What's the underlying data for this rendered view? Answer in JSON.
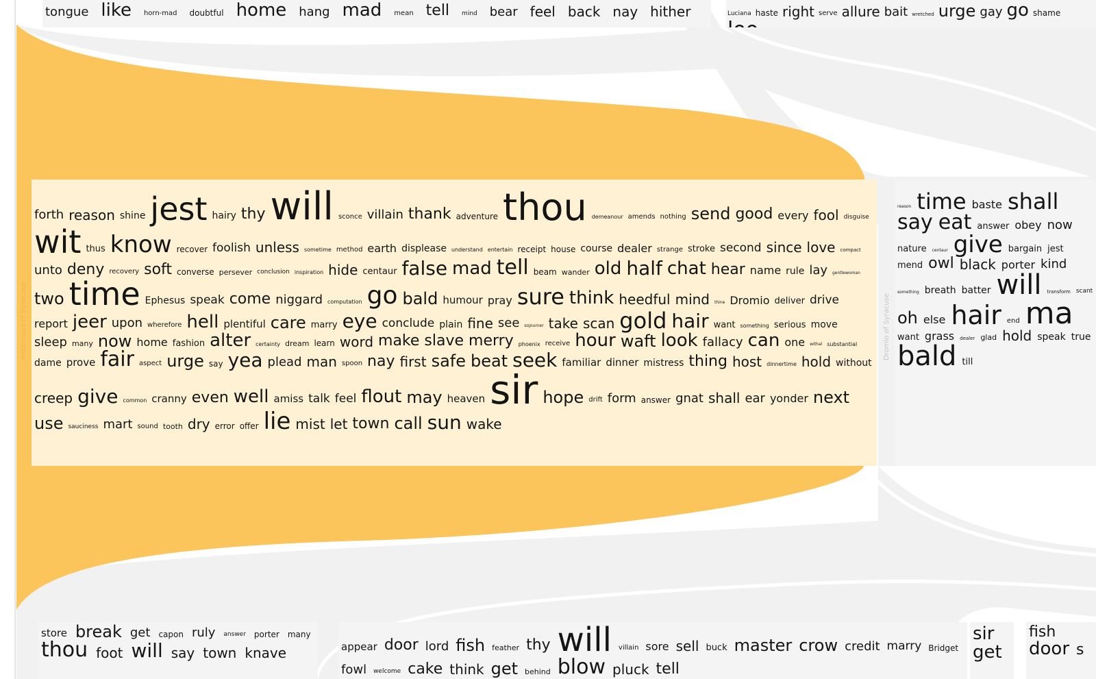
{
  "colors": {
    "accent_flow": "#fbc55b",
    "selected_box": "#fff2d4",
    "neutral_flow": "#f1f1f1",
    "neutral_box": "#f4f4f4",
    "word": "#141414",
    "selected_label": "#f0b84a",
    "neutral_label": "#c6c6c6"
  },
  "selected_box": {
    "label": "Antipholus of Syracuse",
    "words": [
      {
        "t": "forth",
        "s": 18
      },
      {
        "t": "reason",
        "s": 20
      },
      {
        "t": "shine",
        "s": 14
      },
      {
        "t": "jest",
        "s": 46
      },
      {
        "t": "hairy",
        "s": 14
      },
      {
        "t": "thy",
        "s": 22
      },
      {
        "t": "will",
        "s": 56
      },
      {
        "t": "sconce",
        "s": 10
      },
      {
        "t": "villain",
        "s": 18
      },
      {
        "t": "thank",
        "s": 22
      },
      {
        "t": "adventure",
        "s": 12
      },
      {
        "t": "thou",
        "s": 54
      },
      {
        "t": "demeanour",
        "s": 8
      },
      {
        "t": "amends",
        "s": 10
      },
      {
        "t": "nothing",
        "s": 10
      },
      {
        "t": "send",
        "s": 24
      },
      {
        "t": "good",
        "s": 22
      },
      {
        "t": "every",
        "s": 16
      },
      {
        "t": "fool",
        "s": 20
      },
      {
        "t": "disguise",
        "s": 9
      },
      {
        "t": "wit",
        "s": 46
      },
      {
        "t": "thus",
        "s": 13
      },
      {
        "t": "know",
        "s": 34
      },
      {
        "t": "recover",
        "s": 12
      },
      {
        "t": "foolish",
        "s": 17
      },
      {
        "t": "unless",
        "s": 20
      },
      {
        "t": "sometime",
        "s": 8
      },
      {
        "t": "method",
        "s": 10
      },
      {
        "t": "earth",
        "s": 16
      },
      {
        "t": "displease",
        "s": 14
      },
      {
        "t": "understand",
        "s": 8
      },
      {
        "t": "entertain",
        "s": 8
      },
      {
        "t": "receipt",
        "s": 12
      },
      {
        "t": "house",
        "s": 12
      },
      {
        "t": "course",
        "s": 14
      },
      {
        "t": "dealer",
        "s": 16
      },
      {
        "t": "strange",
        "s": 10
      },
      {
        "t": "stroke",
        "s": 13
      },
      {
        "t": "second",
        "s": 17
      },
      {
        "t": "since",
        "s": 20
      },
      {
        "t": "love",
        "s": 20
      },
      {
        "t": "compact",
        "s": 7
      },
      {
        "t": "unto",
        "s": 18
      },
      {
        "t": "deny",
        "s": 22
      },
      {
        "t": "recovery",
        "s": 10
      },
      {
        "t": "soft",
        "s": 22
      },
      {
        "t": "converse",
        "s": 12
      },
      {
        "t": "persever",
        "s": 11
      },
      {
        "t": "conclusion",
        "s": 9
      },
      {
        "t": "inspiration",
        "s": 8
      },
      {
        "t": "hide",
        "s": 20
      },
      {
        "t": "centaur",
        "s": 13
      },
      {
        "t": "false",
        "s": 28
      },
      {
        "t": "mad",
        "s": 26
      },
      {
        "t": "tell",
        "s": 30
      },
      {
        "t": "beam",
        "s": 12
      },
      {
        "t": "wander",
        "s": 11
      },
      {
        "t": "old",
        "s": 26
      },
      {
        "t": "half",
        "s": 28
      },
      {
        "t": "chat",
        "s": 26
      },
      {
        "t": "hear",
        "s": 22
      },
      {
        "t": "name",
        "s": 16
      },
      {
        "t": "rule",
        "s": 14
      },
      {
        "t": "lay",
        "s": 18
      },
      {
        "t": "gentlewoman",
        "s": 6
      },
      {
        "t": "two",
        "s": 24
      },
      {
        "t": "time",
        "s": 46
      },
      {
        "t": "Ephesus",
        "s": 14
      },
      {
        "t": "speak",
        "s": 17
      },
      {
        "t": "come",
        "s": 22
      },
      {
        "t": "niggard",
        "s": 18
      },
      {
        "t": "computation",
        "s": 8
      },
      {
        "t": "go",
        "s": 36
      },
      {
        "t": "bald",
        "s": 24
      },
      {
        "t": "humour",
        "s": 15
      },
      {
        "t": "pray",
        "s": 16
      },
      {
        "t": "sure",
        "s": 32
      },
      {
        "t": "think",
        "s": 26
      },
      {
        "t": "heedful",
        "s": 20
      },
      {
        "t": "mind",
        "s": 20
      },
      {
        "t": "thine",
        "s": 6
      },
      {
        "t": "Dromio",
        "s": 16
      },
      {
        "t": "deliver",
        "s": 13
      },
      {
        "t": "drive",
        "s": 17
      },
      {
        "t": "report",
        "s": 16
      },
      {
        "t": "jeer",
        "s": 26
      },
      {
        "t": "upon",
        "s": 18
      },
      {
        "t": "wherefore",
        "s": 10
      },
      {
        "t": "hell",
        "s": 26
      },
      {
        "t": "plentiful",
        "s": 15
      },
      {
        "t": "care",
        "s": 24
      },
      {
        "t": "marry",
        "s": 13
      },
      {
        "t": "eye",
        "s": 28
      },
      {
        "t": "conclude",
        "s": 17
      },
      {
        "t": "plain",
        "s": 14
      },
      {
        "t": "fine",
        "s": 20
      },
      {
        "t": "see",
        "s": 18
      },
      {
        "t": "sojourner",
        "s": 6
      },
      {
        "t": "take",
        "s": 20
      },
      {
        "t": "scan",
        "s": 20
      },
      {
        "t": "gold",
        "s": 32
      },
      {
        "t": "hair",
        "s": 28
      },
      {
        "t": "want",
        "s": 13
      },
      {
        "t": "something",
        "s": 8
      },
      {
        "t": "serious",
        "s": 13
      },
      {
        "t": "move",
        "s": 14
      },
      {
        "t": "sleep",
        "s": 18
      },
      {
        "t": "many",
        "s": 11
      },
      {
        "t": "now",
        "s": 24
      },
      {
        "t": "home",
        "s": 16
      },
      {
        "t": "fashion",
        "s": 13
      },
      {
        "t": "alter",
        "s": 26
      },
      {
        "t": "certainty",
        "s": 8
      },
      {
        "t": "dream",
        "s": 11
      },
      {
        "t": "learn",
        "s": 12
      },
      {
        "t": "word",
        "s": 20
      },
      {
        "t": "make",
        "s": 22
      },
      {
        "t": "slave",
        "s": 22
      },
      {
        "t": "merry",
        "s": 22
      },
      {
        "t": "phoenix",
        "s": 8
      },
      {
        "t": "receive",
        "s": 10
      },
      {
        "t": "hour",
        "s": 26
      },
      {
        "t": "waft",
        "s": 24
      },
      {
        "t": "look",
        "s": 26
      },
      {
        "t": "fallacy",
        "s": 18
      },
      {
        "t": "can",
        "s": 26
      },
      {
        "t": "one",
        "s": 16
      },
      {
        "t": "withal",
        "s": 6
      },
      {
        "t": "substantial",
        "s": 8
      },
      {
        "t": "dame",
        "s": 14
      },
      {
        "t": "prove",
        "s": 15
      },
      {
        "t": "fair",
        "s": 30
      },
      {
        "t": "aspect",
        "s": 10
      },
      {
        "t": "urge",
        "s": 24
      },
      {
        "t": "say",
        "s": 12
      },
      {
        "t": "yea",
        "s": 28
      },
      {
        "t": "plead",
        "s": 18
      },
      {
        "t": "man",
        "s": 20
      },
      {
        "t": "spoon",
        "s": 10
      },
      {
        "t": "nay",
        "s": 22
      },
      {
        "t": "first",
        "s": 20
      },
      {
        "t": "safe",
        "s": 24
      },
      {
        "t": "beat",
        "s": 24
      },
      {
        "t": "seek",
        "s": 28
      },
      {
        "t": "familiar",
        "s": 15
      },
      {
        "t": "dinner",
        "s": 15
      },
      {
        "t": "mistress",
        "s": 14
      },
      {
        "t": "thing",
        "s": 22
      },
      {
        "t": "host",
        "s": 20
      },
      {
        "t": "dinnertime",
        "s": 8
      },
      {
        "t": "hold",
        "s": 20
      },
      {
        "t": "without",
        "s": 14
      },
      {
        "t": "creep",
        "s": 20
      },
      {
        "t": "give",
        "s": 28
      },
      {
        "t": "common",
        "s": 8
      },
      {
        "t": "cranny",
        "s": 15
      },
      {
        "t": "even",
        "s": 22
      },
      {
        "t": "well",
        "s": 26
      },
      {
        "t": "amiss",
        "s": 15
      },
      {
        "t": "talk",
        "s": 17
      },
      {
        "t": "feel",
        "s": 17
      },
      {
        "t": "flout",
        "s": 26
      },
      {
        "t": "may",
        "s": 24
      },
      {
        "t": "heaven",
        "s": 15
      },
      {
        "t": "sir",
        "s": 58
      },
      {
        "t": "hope",
        "s": 24
      },
      {
        "t": "drift",
        "s": 10
      },
      {
        "t": "form",
        "s": 18
      },
      {
        "t": "answer",
        "s": 12
      },
      {
        "t": "gnat",
        "s": 18
      },
      {
        "t": "shall",
        "s": 20
      },
      {
        "t": "ear",
        "s": 18
      },
      {
        "t": "yonder",
        "s": 16
      },
      {
        "t": "next",
        "s": 24
      },
      {
        "t": "use",
        "s": 24
      },
      {
        "t": "sauciness",
        "s": 9
      },
      {
        "t": "mart",
        "s": 18
      },
      {
        "t": "sound",
        "s": 10
      },
      {
        "t": "tooth",
        "s": 11
      },
      {
        "t": "dry",
        "s": 20
      },
      {
        "t": "error",
        "s": 12
      },
      {
        "t": "offer",
        "s": 12
      },
      {
        "t": "lie",
        "s": 34
      },
      {
        "t": "mist",
        "s": 20
      },
      {
        "t": "let",
        "s": 20
      },
      {
        "t": "town",
        "s": 22
      },
      {
        "t": "call",
        "s": 24
      },
      {
        "t": "sun",
        "s": 28
      },
      {
        "t": "wake",
        "s": 20
      }
    ]
  },
  "right_box": {
    "label": "Dromio of Syracuse",
    "words": [
      {
        "t": "reason",
        "s": 6
      },
      {
        "t": "time",
        "s": 32
      },
      {
        "t": "baste",
        "s": 16
      },
      {
        "t": "shall",
        "s": 32
      },
      {
        "t": "say",
        "s": 30
      },
      {
        "t": "eat",
        "s": 30
      },
      {
        "t": "answer",
        "s": 13
      },
      {
        "t": "obey",
        "s": 16
      },
      {
        "t": "now",
        "s": 18
      },
      {
        "t": "nature",
        "s": 13
      },
      {
        "t": "centaur",
        "s": 6
      },
      {
        "t": "give",
        "s": 34
      },
      {
        "t": "bargain",
        "s": 13
      },
      {
        "t": "jest",
        "s": 13
      },
      {
        "t": "mend",
        "s": 13
      },
      {
        "t": "owl",
        "s": 22
      },
      {
        "t": "black",
        "s": 20
      },
      {
        "t": "porter",
        "s": 16
      },
      {
        "t": "kind",
        "s": 18
      },
      {
        "t": "something",
        "s": 6
      },
      {
        "t": "breath",
        "s": 14
      },
      {
        "t": "batter",
        "s": 14
      },
      {
        "t": "will",
        "s": 40
      },
      {
        "t": "transform",
        "s": 7
      },
      {
        "t": "scant",
        "s": 9
      },
      {
        "t": "oh",
        "s": 24
      },
      {
        "t": "else",
        "s": 16
      },
      {
        "t": "hair",
        "s": 38
      },
      {
        "t": "end",
        "s": 10
      },
      {
        "t": "ma",
        "s": 44
      },
      {
        "t": "want",
        "s": 13
      },
      {
        "t": "grass",
        "s": 16
      },
      {
        "t": "dealer",
        "s": 7
      },
      {
        "t": "glad",
        "s": 11
      },
      {
        "t": "hold",
        "s": 20
      },
      {
        "t": "speak",
        "s": 14
      },
      {
        "t": "true",
        "s": 14
      },
      {
        "t": "bald",
        "s": 40
      },
      {
        "t": "till",
        "s": 13
      }
    ]
  },
  "top_left_box": {
    "words": [
      {
        "t": "tongue",
        "s": 18
      },
      {
        "t": "like",
        "s": 26
      },
      {
        "t": "horn-mad",
        "s": 10
      },
      {
        "t": "doubtful",
        "s": 12
      },
      {
        "t": "home",
        "s": 26
      },
      {
        "t": "hang",
        "s": 18
      },
      {
        "t": "mad",
        "s": 26
      },
      {
        "t": "mean",
        "s": 10
      },
      {
        "t": "tell",
        "s": 22
      },
      {
        "t": "mind",
        "s": 9
      },
      {
        "t": "bear",
        "s": 18
      },
      {
        "t": "feel",
        "s": 20
      },
      {
        "t": "back",
        "s": 20
      },
      {
        "t": "nay",
        "s": 20
      },
      {
        "t": "hither",
        "s": 20
      }
    ]
  },
  "top_right_box": {
    "words": [
      {
        "t": "Luciana",
        "s": 9
      },
      {
        "t": "haste",
        "s": 12
      },
      {
        "t": "right",
        "s": 20
      },
      {
        "t": "serve",
        "s": 10
      },
      {
        "t": "allure",
        "s": 20
      },
      {
        "t": "bait",
        "s": 18
      },
      {
        "t": "wretched",
        "s": 7
      },
      {
        "t": "urge",
        "s": 24
      },
      {
        "t": "gay",
        "s": 18
      },
      {
        "t": "go",
        "s": 26
      },
      {
        "t": "shame",
        "s": 12
      },
      {
        "t": "loo",
        "s": 30
      }
    ]
  },
  "bottom_box_1": {
    "words": [
      {
        "t": "store",
        "s": 15
      },
      {
        "t": "break",
        "s": 24
      },
      {
        "t": "get",
        "s": 18
      },
      {
        "t": "capon",
        "s": 12
      },
      {
        "t": "ruly",
        "s": 18
      },
      {
        "t": "answer",
        "s": 9
      },
      {
        "t": "porter",
        "s": 12
      },
      {
        "t": "many",
        "s": 12
      },
      {
        "t": "thou",
        "s": 30
      },
      {
        "t": "foot",
        "s": 20
      },
      {
        "t": "will",
        "s": 28
      },
      {
        "t": "say",
        "s": 20
      },
      {
        "t": "town",
        "s": 20
      },
      {
        "t": "knave",
        "s": 20
      }
    ]
  },
  "bottom_box_2": {
    "words": [
      {
        "t": "appear",
        "s": 15
      },
      {
        "t": "door",
        "s": 22
      },
      {
        "t": "lord",
        "s": 18
      },
      {
        "t": "fish",
        "s": 24
      },
      {
        "t": "feather",
        "s": 11
      },
      {
        "t": "thy",
        "s": 22
      },
      {
        "t": "will",
        "s": 48
      },
      {
        "t": "villain",
        "s": 10
      },
      {
        "t": "sore",
        "s": 16
      },
      {
        "t": "sell",
        "s": 20
      },
      {
        "t": "buck",
        "s": 13
      },
      {
        "t": "master",
        "s": 24
      },
      {
        "t": "crow",
        "s": 24
      },
      {
        "t": "credit",
        "s": 18
      },
      {
        "t": "marry",
        "s": 17
      },
      {
        "t": "Bridget",
        "s": 12
      },
      {
        "t": "fowl",
        "s": 18
      },
      {
        "t": "welcome",
        "s": 9
      },
      {
        "t": "cake",
        "s": 22
      },
      {
        "t": "think",
        "s": 20
      },
      {
        "t": "get",
        "s": 24
      },
      {
        "t": "behind",
        "s": 11
      },
      {
        "t": "blow",
        "s": 30
      },
      {
        "t": "pluck",
        "s": 20
      },
      {
        "t": "tell",
        "s": 22
      }
    ]
  },
  "bottom_box_3": {
    "words": [
      {
        "t": "sir",
        "s": 26
      },
      {
        "t": "get",
        "s": 26
      }
    ]
  },
  "bottom_box_4": {
    "words": [
      {
        "t": "fish",
        "s": 22
      },
      {
        "t": "door",
        "s": 26
      },
      {
        "t": "s",
        "s": 22
      }
    ]
  }
}
